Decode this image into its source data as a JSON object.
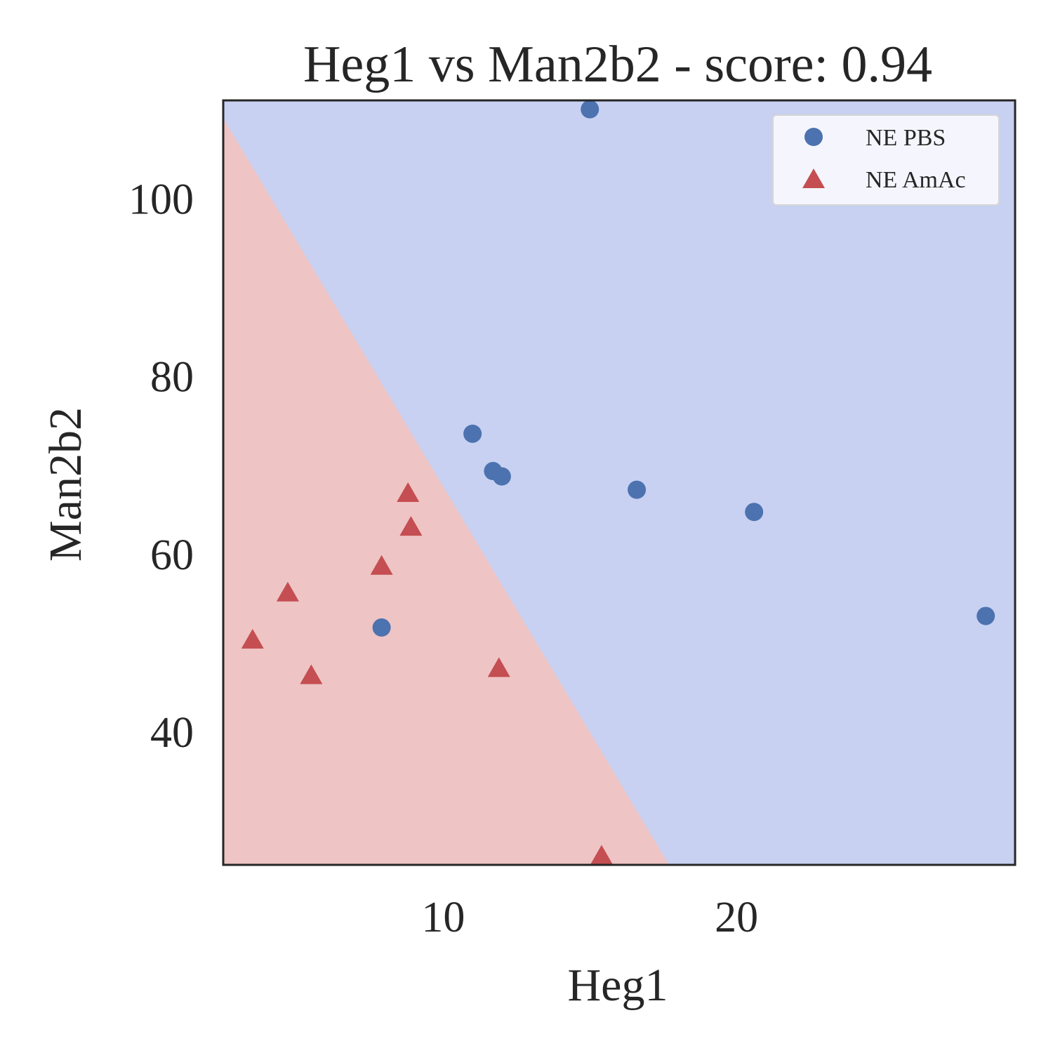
{
  "chart_data": {
    "type": "scatter",
    "title": "Heg1 vs Man2b2 - score: 0.94",
    "xlabel": "Heg1",
    "ylabel": "Man2b2",
    "xlim": [
      2.5,
      29.5
    ],
    "ylim": [
      25,
      111
    ],
    "xticks": [
      10,
      20
    ],
    "yticks": [
      40,
      60,
      80,
      100
    ],
    "grid": false,
    "legend_position": "top-right",
    "decision_boundary": {
      "line": [
        [
          2.5,
          109
        ],
        [
          17.7,
          25
        ]
      ],
      "lower_left_region_color": "#efc4c4",
      "upper_right_region_color": "#c8d1f1"
    },
    "series": [
      {
        "name": "NE PBS",
        "marker": "circle",
        "color": "#4c72b0",
        "points": [
          [
            15.0,
            110
          ],
          [
            11.0,
            73.5
          ],
          [
            11.7,
            69.3
          ],
          [
            12.0,
            68.7
          ],
          [
            16.6,
            67.2
          ],
          [
            20.6,
            64.7
          ],
          [
            7.9,
            51.7
          ],
          [
            28.5,
            53.0
          ]
        ]
      },
      {
        "name": "NE AmAc",
        "marker": "triangle",
        "color": "#c44e52",
        "points": [
          [
            8.8,
            66.7
          ],
          [
            8.9,
            62.9
          ],
          [
            7.9,
            58.5
          ],
          [
            4.7,
            55.5
          ],
          [
            3.5,
            50.2
          ],
          [
            5.5,
            46.2
          ],
          [
            11.9,
            47.0
          ],
          [
            15.4,
            25.9
          ]
        ]
      }
    ]
  }
}
